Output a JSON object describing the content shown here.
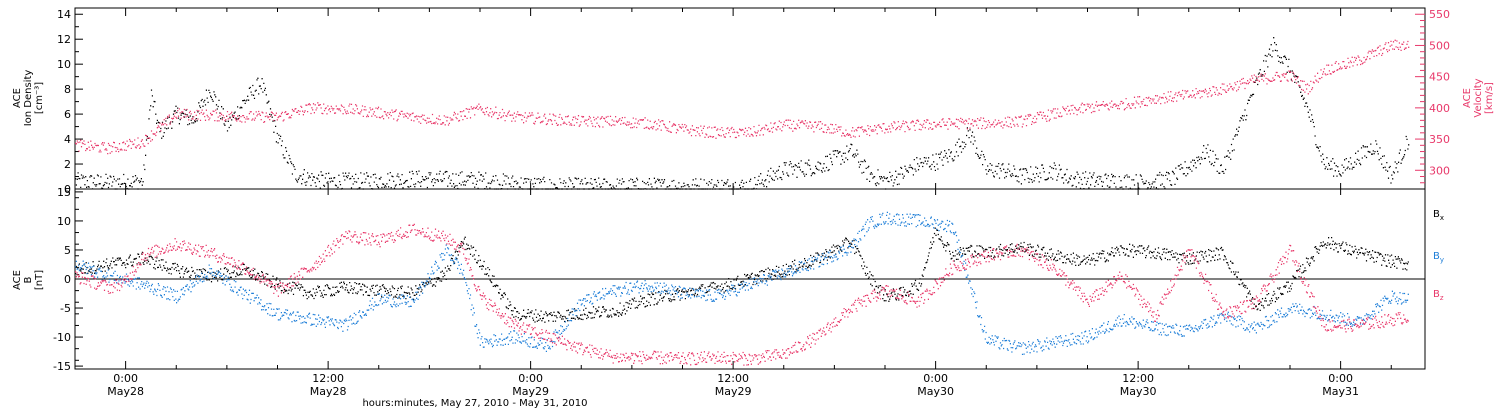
{
  "chart_data": [
    {
      "type": "scatter",
      "panel": "plasma",
      "x_unit": "hours since 2010-05-27 21:00",
      "xlim": [
        0,
        80
      ],
      "left_axis": {
        "label_lines": [
          "ACE",
          "Ion Density",
          "[cm⁻³]"
        ],
        "ylim": [
          0,
          14.5
        ],
        "ticks": [
          0,
          2,
          4,
          6,
          8,
          10,
          12,
          14
        ]
      },
      "right_axis": {
        "label_lines": [
          "ACE",
          "Velocity",
          "[km/s]"
        ],
        "ylim": [
          270,
          560
        ],
        "ticks": [
          300,
          350,
          400,
          450,
          500,
          550
        ],
        "color": "#e8386a"
      },
      "series": [
        {
          "axis": "left",
          "color": "#000000",
          "x": [
            0,
            2,
            4,
            4.5,
            5,
            6,
            7,
            8,
            9,
            10,
            11,
            12,
            13,
            14,
            15,
            16,
            17,
            18,
            20,
            24,
            28,
            32,
            36,
            40,
            42,
            44,
            46,
            47,
            48,
            49,
            50,
            51,
            52,
            53,
            54,
            55,
            56,
            57,
            58,
            59,
            60,
            61,
            62,
            63,
            64,
            65,
            66,
            67,
            68,
            69,
            70,
            71,
            72,
            73,
            74,
            75,
            76,
            77,
            78,
            79
          ],
          "y": [
            0.6,
            0.5,
            0.6,
            7.5,
            4.5,
            6.0,
            5.5,
            8.0,
            5.0,
            7.0,
            8.5,
            4.0,
            1.2,
            0.8,
            0.6,
            0.6,
            0.6,
            0.7,
            0.8,
            0.7,
            0.2,
            0.2,
            0.2,
            0.2,
            1.5,
            1.8,
            3.0,
            1.2,
            0.6,
            1.2,
            2.0,
            2.2,
            2.8,
            4.5,
            1.5,
            1.5,
            1.0,
            1.2,
            1.5,
            0.8,
            0.7,
            0.6,
            0.6,
            0.5,
            0.6,
            0.8,
            1.8,
            3.0,
            1.5,
            5.0,
            8.5,
            11.5,
            9.5,
            6.5,
            2.0,
            1.5,
            2.5,
            3.5,
            1.0,
            4.0
          ]
        },
        {
          "axis": "right",
          "color": "#e8386a",
          "x": [
            0,
            2,
            4,
            6,
            8,
            10,
            12,
            14,
            16,
            18,
            20,
            22,
            24,
            26,
            28,
            30,
            32,
            34,
            36,
            38,
            40,
            42,
            44,
            46,
            48,
            50,
            52,
            54,
            56,
            58,
            60,
            62,
            64,
            66,
            68,
            70,
            72,
            73,
            74,
            76,
            78,
            79
          ],
          "y": [
            340,
            335,
            345,
            390,
            388,
            386,
            385,
            400,
            398,
            392,
            385,
            380,
            398,
            385,
            382,
            378,
            378,
            375,
            365,
            360,
            360,
            372,
            370,
            360,
            368,
            372,
            375,
            375,
            378,
            390,
            400,
            405,
            415,
            420,
            430,
            445,
            452,
            430,
            460,
            475,
            500,
            500
          ]
        }
      ]
    },
    {
      "type": "scatter",
      "panel": "magnetic",
      "x_unit": "hours since 2010-05-27 21:00",
      "xlim": [
        0,
        80
      ],
      "ylim": [
        -15.5,
        15.5
      ],
      "y_ticks": [
        -15,
        -10,
        -5,
        0,
        5,
        10,
        15
      ],
      "zero_line": true,
      "y_label_lines": [
        "ACE",
        "B",
        "[nT]"
      ],
      "legend": [
        {
          "name": "B",
          "sub": "x",
          "color": "#000000"
        },
        {
          "name": "B",
          "sub": "y",
          "color": "#1f7fd8"
        },
        {
          "name": "B",
          "sub": "z",
          "color": "#e8386a"
        }
      ],
      "series": [
        {
          "component": "Bx",
          "color": "#000000",
          "x": [
            0,
            2,
            4,
            6,
            8,
            10,
            12,
            14,
            16,
            18,
            20,
            22,
            23,
            24,
            26,
            28,
            30,
            32,
            34,
            36,
            38,
            40,
            42,
            44,
            46,
            47,
            48,
            49,
            50,
            51,
            52,
            53,
            54,
            56,
            58,
            60,
            62,
            64,
            66,
            68,
            70,
            72,
            74,
            76,
            78,
            79
          ],
          "y": [
            1.5,
            2.5,
            3.5,
            1.5,
            0.5,
            1.5,
            -1.0,
            -2.5,
            -1.5,
            -2.0,
            -2.5,
            1.0,
            6.5,
            3.0,
            -6.0,
            -6.5,
            -6.0,
            -5.5,
            -3.5,
            -2.5,
            -1.5,
            0.0,
            1.5,
            3.5,
            6.5,
            0.5,
            -3.0,
            -2.5,
            -1.0,
            8.5,
            4.0,
            5.0,
            4.5,
            5.5,
            4.0,
            3.0,
            5.0,
            4.5,
            3.5,
            4.5,
            -5.0,
            -1.0,
            6.5,
            4.5,
            3.0,
            2.5
          ]
        },
        {
          "component": "By",
          "color": "#1f7fd8",
          "x": [
            0,
            2,
            4,
            6,
            8,
            10,
            12,
            14,
            16,
            18,
            20,
            22,
            23,
            24,
            26,
            28,
            30,
            32,
            34,
            36,
            38,
            40,
            42,
            44,
            46,
            47,
            48,
            50,
            52,
            54,
            56,
            58,
            60,
            62,
            64,
            66,
            68,
            70,
            72,
            74,
            76,
            78,
            79
          ],
          "y": [
            2.5,
            0.5,
            -1.0,
            -3.0,
            1.5,
            -2.5,
            -6.0,
            -7.0,
            -8.0,
            -3.5,
            -4.0,
            5.0,
            1.0,
            -11.0,
            -10.0,
            -11.5,
            -4.0,
            -2.0,
            -1.0,
            -2.5,
            -3.0,
            -1.0,
            1.0,
            3.0,
            5.5,
            9.5,
            10.5,
            10.0,
            9.0,
            -10.5,
            -12.0,
            -11.0,
            -10.0,
            -7.0,
            -8.5,
            -9.0,
            -6.5,
            -8.5,
            -5.0,
            -6.0,
            -7.5,
            -3.0,
            -3.5
          ]
        },
        {
          "component": "Bz",
          "color": "#e8386a",
          "x": [
            0,
            2,
            3,
            4,
            6,
            8,
            10,
            12,
            14,
            16,
            18,
            20,
            22,
            23,
            24,
            25,
            26,
            28,
            30,
            32,
            34,
            36,
            38,
            40,
            42,
            44,
            46,
            48,
            50,
            52,
            54,
            56,
            58,
            60,
            62,
            64,
            66,
            68,
            70,
            72,
            74,
            76,
            78,
            79
          ],
          "y": [
            0.5,
            -1.5,
            -0.5,
            4.0,
            6.0,
            4.5,
            2.0,
            -2.0,
            2.0,
            7.5,
            6.5,
            8.5,
            7.0,
            5.0,
            -3.0,
            -5.5,
            -8.0,
            -10.0,
            -12.0,
            -13.5,
            -13.5,
            -13.8,
            -13.5,
            -13.8,
            -13.0,
            -10.0,
            -5.0,
            -2.0,
            -4.0,
            2.0,
            4.0,
            5.0,
            2.0,
            -4.0,
            0.5,
            -6.5,
            5.0,
            -6.0,
            -4.0,
            5.0,
            -8.0,
            -8.0,
            -7.0,
            -6.5
          ]
        }
      ]
    }
  ],
  "x_axis": {
    "ticks": [
      {
        "hour": 3,
        "line1": "0:00",
        "line2": "May28"
      },
      {
        "hour": 15,
        "line1": "12:00",
        "line2": "May28"
      },
      {
        "hour": 27,
        "line1": "0:00",
        "line2": "May29"
      },
      {
        "hour": 39,
        "line1": "12:00",
        "line2": "May29"
      },
      {
        "hour": 51,
        "line1": "0:00",
        "line2": "May30"
      },
      {
        "hour": 63,
        "line1": "12:00",
        "line2": "May30"
      },
      {
        "hour": 75,
        "line1": "0:00",
        "line2": "May31"
      }
    ],
    "label": "hours:minutes, May 27, 2010 - May 31, 2010"
  }
}
